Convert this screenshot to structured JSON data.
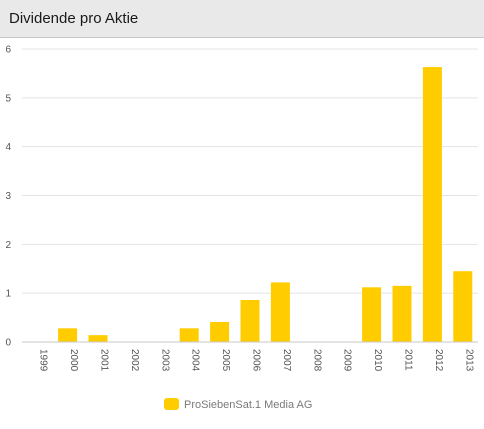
{
  "header": {
    "title": "Dividende pro Aktie"
  },
  "chart_data": {
    "type": "bar",
    "categories": [
      "1999",
      "2000",
      "2001",
      "2002",
      "2003",
      "2004",
      "2005",
      "2006",
      "2007",
      "2008",
      "2009",
      "2010",
      "2011",
      "2012",
      "2013"
    ],
    "series": [
      {
        "name": "ProSiebenSat.1 Media AG",
        "values": [
          0,
          0.28,
          0.14,
          0,
          0,
          0.28,
          0.41,
          0.86,
          1.22,
          0,
          0,
          1.12,
          1.15,
          5.63,
          1.45
        ]
      }
    ],
    "yticks": [
      "0",
      "1",
      "2",
      "3",
      "4",
      "5",
      "6"
    ],
    "ylim": [
      0,
      6
    ],
    "grid": true,
    "legend": "bottom-center",
    "colors": {
      "bar": "#ffcc00",
      "grid": "#e4e4e4"
    }
  }
}
